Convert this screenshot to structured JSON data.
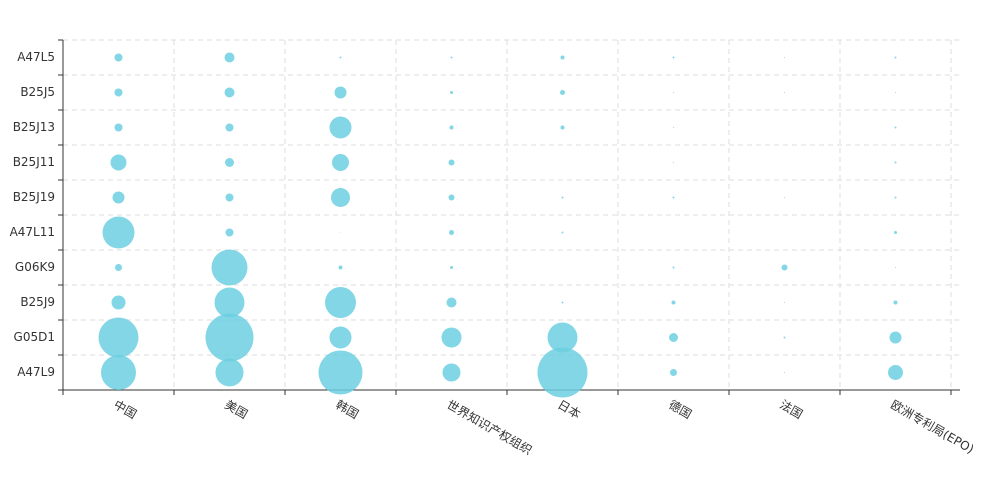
{
  "chart_data": {
    "type": "punchcard",
    "categories": [
      "中国",
      "美国",
      "韩国",
      "世界知识产权组织",
      "日本",
      "德国",
      "法国",
      "欧洲专利局(EPO)"
    ],
    "y_categories": [
      "A47L5",
      "B25J5",
      "B25J13",
      "B25J11",
      "B25J19",
      "A47L11",
      "G06K9",
      "B25J9",
      "G05D1",
      "A47L9"
    ],
    "values": [
      [
        16,
        25,
        1,
        1,
        4,
        1,
        0.25,
        1
      ],
      [
        16,
        25,
        36,
        2.25,
        6.25,
        0.25,
        0.25,
        0.25
      ],
      [
        16,
        16,
        121,
        4,
        4,
        0.25,
        0,
        1
      ],
      [
        64,
        20,
        72,
        9,
        0,
        0.25,
        0,
        1
      ],
      [
        36,
        16,
        90,
        9,
        1,
        1,
        0.25,
        1
      ],
      [
        256,
        16,
        0.1,
        6.25,
        1,
        0,
        0,
        2.25
      ],
      [
        12,
        324,
        4,
        2.25,
        0,
        1,
        9,
        0.25
      ],
      [
        49,
        225,
        240,
        25,
        1,
        4,
        0.25,
        4
      ],
      [
        400,
        576,
        121,
        100,
        225,
        20,
        1,
        36
      ],
      [
        306,
        196,
        484,
        81,
        625,
        12,
        0.25,
        56
      ]
    ],
    "color": "#6ccfe0"
  }
}
